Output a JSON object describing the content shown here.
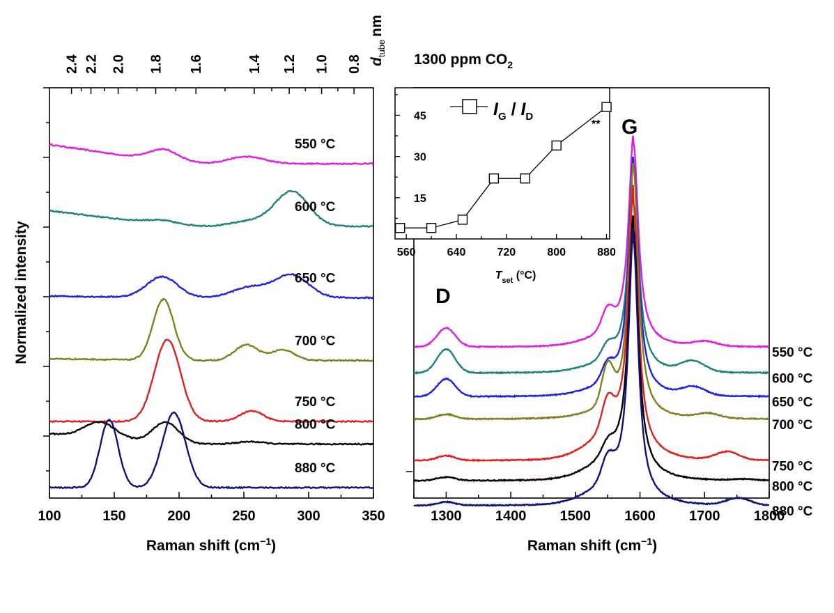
{
  "chart_data": [
    {
      "type": "line",
      "xlabel": "Raman shift (cm",
      "xlabel_sup": "−1",
      "xlabel_end": ")",
      "ylabel": "Normalized intensity",
      "xlim": [
        100,
        350
      ],
      "x_ticks": [
        100,
        150,
        200,
        250,
        300,
        350
      ],
      "top_axis": {
        "label": "d",
        "label_sub": "tube",
        "label_unit": "nm",
        "ticks": [
          {
            "label": "2.4",
            "x": 117
          },
          {
            "label": "2.2",
            "x": 132
          },
          {
            "label": "2.0",
            "x": 153
          },
          {
            "label": "1.8",
            "x": 182
          },
          {
            "label": "1.6",
            "x": 213
          },
          {
            "label": "1.4",
            "x": 258
          },
          {
            "label": "1.2",
            "x": 285
          },
          {
            "label": "1.0",
            "x": 310
          },
          {
            "label": "0.8",
            "x": 335
          }
        ]
      },
      "series": [
        {
          "name": "550 °C",
          "color": "#e020e0",
          "offset": 9.3,
          "peaks": [
            [
              189,
              0.35,
              12
            ],
            [
              252,
              0.2,
              14
            ]
          ],
          "start": 0.55
        },
        {
          "name": "600 °C",
          "color": "#208080",
          "offset": 7.5,
          "peaks": [
            [
              189,
              0.12,
              14
            ],
            [
              255,
              0.15,
              14
            ],
            [
              287,
              1.0,
              13
            ]
          ],
          "start": 0.45
        },
        {
          "name": "650 °C",
          "color": "#2020e0",
          "offset": 5.45,
          "peaks": [
            [
              187,
              0.6,
              12
            ],
            [
              255,
              0.3,
              14
            ],
            [
              287,
              0.65,
              13
            ]
          ],
          "start": 0.05
        },
        {
          "name": "700 °C",
          "color": "#808020",
          "offset": 3.65,
          "peaks": [
            [
              188,
              1.75,
              8
            ],
            [
              252,
              0.45,
              9
            ],
            [
              280,
              0.3,
              9
            ]
          ],
          "start": 0.05
        },
        {
          "name": "750 °C",
          "color": "#e02020",
          "offset": 1.9,
          "peaks": [
            [
              191,
              2.35,
              10
            ],
            [
              256,
              0.3,
              9
            ]
          ],
          "start": 0.0
        },
        {
          "name": "800 °C",
          "color": "#000000",
          "offset": 1.25,
          "peaks": [
            [
              139,
              0.45,
              12
            ],
            [
              190,
              0.6,
              10
            ],
            [
              255,
              0.07,
              10
            ]
          ],
          "start": 0.3
        },
        {
          "name": "880 °C",
          "color": "#10107a",
          "offset": 0.0,
          "peaks": [
            [
              146,
              1.95,
              7
            ],
            [
              196,
              2.15,
              9
            ]
          ],
          "start": 0.0
        }
      ]
    },
    {
      "type": "line",
      "title": "1300 ppm CO",
      "title_sub": "2",
      "xlabel": "Raman shift (cm",
      "xlabel_sup": "−1",
      "xlabel_end": ")",
      "xlim": [
        1250,
        1800
      ],
      "x_ticks": [
        1300,
        1400,
        1500,
        1600,
        1700,
        1800
      ],
      "annotations": [
        "D",
        "G"
      ],
      "series": [
        {
          "name": "550 °C",
          "color": "#e020e0",
          "offset": 7.7,
          "G": 8.4,
          "Dh": 0.8,
          "D2": 0.85,
          "side": 0.6,
          "tail": 0.15,
          "hi": [
            1700,
            0.2
          ]
        },
        {
          "name": "600 °C",
          "color": "#208080",
          "offset": 6.6,
          "G": 8.55,
          "Dh": 1.0,
          "D2": 0.55,
          "side": 0.5,
          "tail": 0.1,
          "hi": [
            1682,
            0.45
          ]
        },
        {
          "name": "650 °C",
          "color": "#2020e0",
          "offset": 5.6,
          "G": 9.7,
          "Dh": 0.75,
          "D2": 0.7,
          "side": 0.5,
          "tail": 0.1,
          "hi": [
            1683,
            0.35
          ]
        },
        {
          "name": "700 °C",
          "color": "#808020",
          "offset": 4.65,
          "G": 10.5,
          "Dh": 0.2,
          "D2": 1.6,
          "side": 0.4,
          "tail": 0.05,
          "hi": [
            1705,
            0.2
          ]
        },
        {
          "name": "750 °C",
          "color": "#e02020",
          "offset": 2.9,
          "G": 10.45,
          "Dh": 0.2,
          "D2": 1.2,
          "side": 1.3,
          "tail": 0.05,
          "hi": [
            1735,
            0.35
          ]
        },
        {
          "name": "800 °C",
          "color": "#000000",
          "offset": 2.05,
          "G": 10.3,
          "Dh": 0.15,
          "D2": 0.5,
          "side": 1.0,
          "tail": 0.05,
          "hi": [
            1760,
            0.05
          ]
        },
        {
          "name": "880 °C",
          "color": "#10107a",
          "offset": 1.0,
          "G": 10.85,
          "Dh": 0.15,
          "D2": 0.9,
          "side": 1.0,
          "tail": 0.05,
          "hi": [
            1752,
            0.3
          ]
        }
      ],
      "inset": {
        "type": "scatter",
        "legend": "I",
        "legend_sub1": "G",
        "legend_mid": " / ",
        "legend_i2": "I",
        "legend_sub2": "D",
        "xlabel": "T",
        "xlabel_sub": "set",
        "xlabel_unit": " (°C)",
        "x": [
          550,
          600,
          650,
          700,
          750,
          800,
          880
        ],
        "y": [
          4,
          4,
          7,
          22,
          22,
          34,
          48
        ],
        "x_ticks": [
          560,
          640,
          720,
          800,
          880
        ],
        "y_ticks": [
          15,
          30,
          45
        ],
        "xlim": [
          542,
          885
        ],
        "ylim": [
          0,
          55
        ],
        "marker_note": "**"
      }
    }
  ]
}
